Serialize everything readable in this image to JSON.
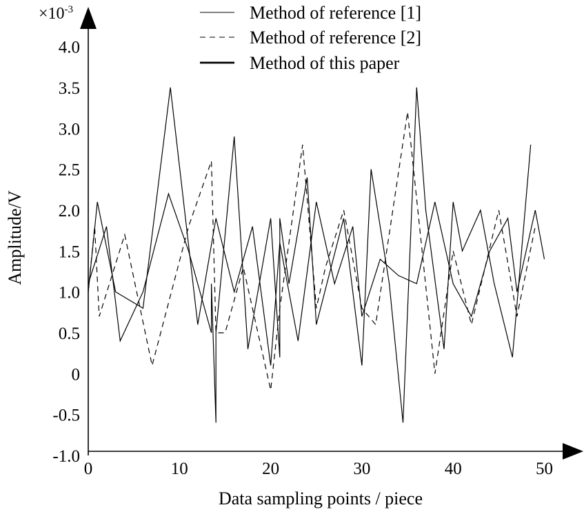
{
  "chart_data": {
    "type": "line",
    "title": "",
    "xlabel": "Data sampling points / piece",
    "ylabel": "Amplitude/V",
    "y_multiplier_base": "×10",
    "y_multiplier_exp": "-3",
    "xlim": [
      0,
      52
    ],
    "ylim": [
      -1.0,
      4.3
    ],
    "xticks": [
      0,
      10,
      20,
      30,
      40,
      50
    ],
    "xtick_labels": [
      "0",
      "10",
      "20",
      "30",
      "40",
      "50"
    ],
    "yticks": [
      -1.0,
      -0.5,
      0,
      0.5,
      1.0,
      1.5,
      2.0,
      2.5,
      3.0,
      3.5,
      4.0
    ],
    "ytick_labels": [
      "-1.0",
      "-0.5",
      "0",
      "0.5",
      "1.0",
      "1.5",
      "2.0",
      "2.5",
      "3.0",
      "3.5",
      "4.0"
    ],
    "grid": false,
    "legend_position": "top-right",
    "series": [
      {
        "name": "Method of reference [1]",
        "style": "thin-solid",
        "points": [
          [
            0,
            1.0
          ],
          [
            1,
            2.1
          ],
          [
            3,
            1.0
          ],
          [
            6,
            0.8
          ],
          [
            9,
            3.5
          ],
          [
            12,
            0.6
          ],
          [
            14,
            1.9
          ],
          [
            16,
            1.0
          ],
          [
            18,
            1.8
          ],
          [
            20,
            0.1
          ],
          [
            21,
            1.6
          ],
          [
            23,
            0.4
          ],
          [
            25,
            2.1
          ],
          [
            27,
            1.1
          ],
          [
            29,
            1.8
          ],
          [
            30,
            0.7
          ],
          [
            32,
            1.4
          ],
          [
            34,
            1.2
          ],
          [
            36,
            1.1
          ],
          [
            38,
            2.1
          ],
          [
            40,
            1.1
          ],
          [
            42,
            0.7
          ],
          [
            44,
            1.5
          ],
          [
            46,
            1.9
          ],
          [
            47,
            1.0
          ],
          [
            49,
            2.0
          ],
          [
            50,
            1.4
          ]
        ]
      },
      {
        "name": "Method of reference [2]",
        "style": "dashed",
        "points": [
          [
            0,
            1.0
          ],
          [
            0.7,
            1.8
          ],
          [
            1.2,
            0.7
          ],
          [
            4,
            1.7
          ],
          [
            7,
            0.1
          ],
          [
            11,
            1.8
          ],
          [
            13.5,
            2.6
          ],
          [
            14,
            0.5
          ],
          [
            15,
            0.5
          ],
          [
            17,
            1.3
          ],
          [
            20,
            -0.2
          ],
          [
            21,
            0.8
          ],
          [
            23.5,
            2.8
          ],
          [
            25,
            0.8
          ],
          [
            26,
            1.3
          ],
          [
            28,
            2.0
          ],
          [
            30,
            0.8
          ],
          [
            31.5,
            0.6
          ],
          [
            35,
            3.2
          ],
          [
            38,
            0.0
          ],
          [
            40,
            1.5
          ],
          [
            42,
            0.6
          ],
          [
            45,
            2.0
          ],
          [
            47,
            0.7
          ],
          [
            49,
            1.8
          ]
        ]
      },
      {
        "name": "Method of this paper",
        "style": "thin-solid",
        "points": [
          [
            0,
            1.1
          ],
          [
            2,
            1.8
          ],
          [
            3.5,
            0.4
          ],
          [
            6,
            1.0
          ],
          [
            8.8,
            2.2
          ],
          [
            11,
            1.5
          ],
          [
            13.5,
            0.5
          ],
          [
            13.5,
            1.1
          ],
          [
            14,
            -0.6
          ],
          [
            14,
            0.5
          ],
          [
            16,
            2.9
          ],
          [
            17.5,
            0.3
          ],
          [
            20,
            1.9
          ],
          [
            21,
            0.2
          ],
          [
            21,
            1.9
          ],
          [
            22,
            1.1
          ],
          [
            24,
            2.4
          ],
          [
            25,
            0.6
          ],
          [
            28,
            1.9
          ],
          [
            30,
            0.1
          ],
          [
            31,
            2.5
          ],
          [
            33,
            1.1
          ],
          [
            34.5,
            -0.6
          ],
          [
            36,
            3.5
          ],
          [
            37,
            2.0
          ],
          [
            39,
            0.3
          ],
          [
            40,
            2.1
          ],
          [
            41,
            1.5
          ],
          [
            43,
            2.0
          ],
          [
            44.5,
            1.1
          ],
          [
            46.5,
            0.2
          ],
          [
            48.5,
            2.8
          ]
        ]
      }
    ]
  }
}
